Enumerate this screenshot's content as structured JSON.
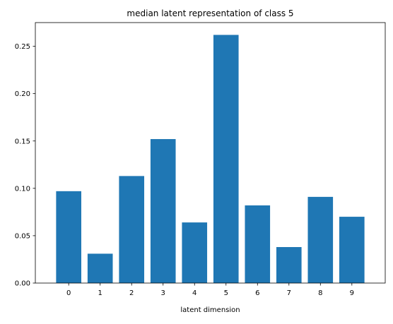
{
  "chart_data": {
    "type": "bar",
    "title": "median latent representation of class 5",
    "xlabel": "latent dimension",
    "ylabel": "",
    "categories": [
      "0",
      "1",
      "2",
      "3",
      "4",
      "5",
      "6",
      "7",
      "8",
      "9"
    ],
    "values": [
      0.097,
      0.031,
      0.113,
      0.152,
      0.064,
      0.262,
      0.082,
      0.038,
      0.091,
      0.07
    ],
    "ylim": [
      0,
      0.275
    ],
    "yticks": [
      "0.00",
      "0.05",
      "0.10",
      "0.15",
      "0.20",
      "0.25"
    ],
    "bar_color": "#1f77b4",
    "grid": false,
    "legend": "none"
  }
}
